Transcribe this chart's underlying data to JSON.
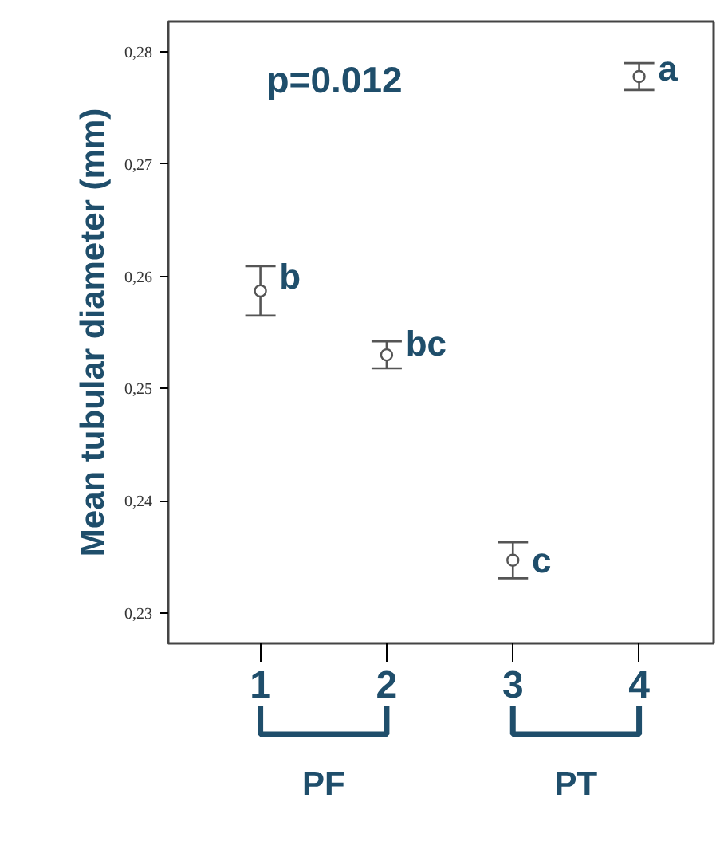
{
  "chart_data": {
    "type": "scatter",
    "ylabel": "Mean tubular diameter (mm)",
    "categories": [
      "1",
      "2",
      "3",
      "4"
    ],
    "values": [
      0.2587,
      0.253,
      0.2347,
      0.2778
    ],
    "errors": [
      0.0022,
      0.0012,
      0.0016,
      0.0012
    ],
    "color": "#555555",
    "marker": "circle",
    "ylim": [
      0.2273,
      0.2827
    ],
    "yticks": [
      {
        "value": 0.23,
        "label": "0,23"
      },
      {
        "value": 0.24,
        "label": "0,24"
      },
      {
        "value": 0.25,
        "label": "0,25"
      },
      {
        "value": 0.26,
        "label": "0,26"
      },
      {
        "value": 0.27,
        "label": "0,27"
      },
      {
        "value": 0.28,
        "label": "0,28"
      }
    ],
    "grid": false,
    "annotations": [
      "p=0.012",
      {
        "text": "b",
        "x": "1",
        "y": 0.26
      },
      {
        "text": "bc",
        "x": "2",
        "y": 0.254
      },
      {
        "text": "c",
        "x": "3",
        "y": 0.2347
      },
      {
        "text": "a",
        "x": "4",
        "y": 0.2785
      },
      "PF",
      "PT"
    ]
  }
}
